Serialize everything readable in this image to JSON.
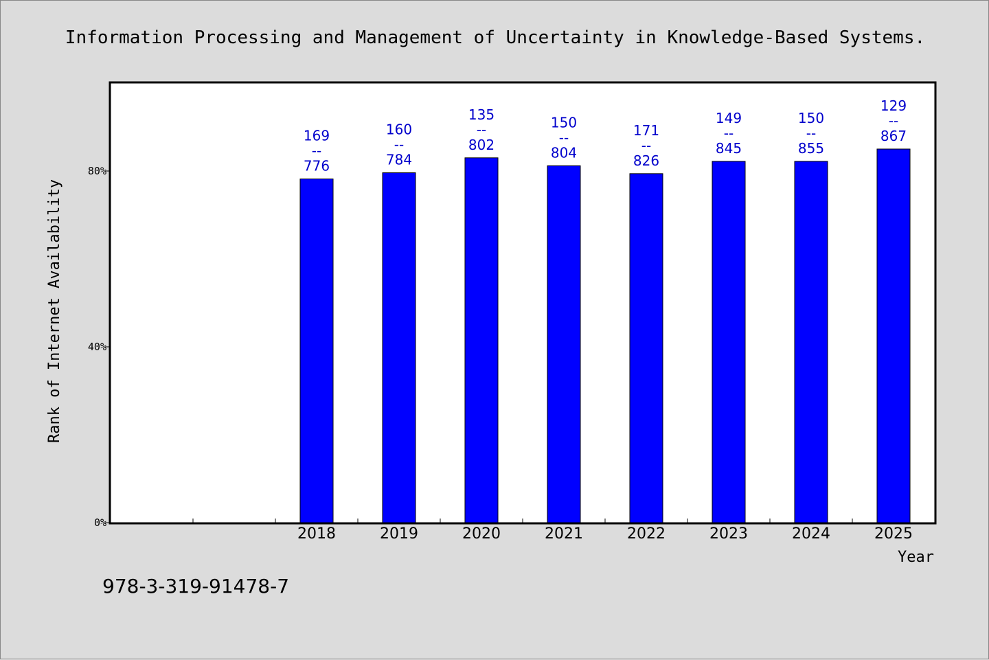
{
  "chart_data": {
    "type": "bar",
    "title": "Information Processing and Management of Uncertainty in Knowledge-Based Systems.",
    "xlabel": "Year",
    "ylabel": "Rank of Internet Availability",
    "categories": [
      "",
      "",
      "2018",
      "2019",
      "2020",
      "2021",
      "2022",
      "2023",
      "2024",
      "2025"
    ],
    "values": [
      null,
      null,
      78.2,
      79.6,
      83.0,
      81.2,
      79.4,
      82.2,
      82.2,
      85.0
    ],
    "data_labels": [
      null,
      null,
      [
        "169",
        "--",
        "776"
      ],
      [
        "160",
        "--",
        "784"
      ],
      [
        "135",
        "--",
        "802"
      ],
      [
        "150",
        "--",
        "804"
      ],
      [
        "171",
        "--",
        "826"
      ],
      [
        "149",
        "--",
        "845"
      ],
      [
        "150",
        "--",
        "855"
      ],
      [
        "129",
        "--",
        "867"
      ]
    ],
    "y_ticks": [
      0,
      40,
      80
    ],
    "y_tick_labels": [
      "0%",
      "40%",
      "80%"
    ],
    "ylim": [
      0,
      100
    ],
    "bar_color": "#0000ff",
    "label_color": "#0000cc",
    "grid": false,
    "legend": "none"
  },
  "footer": {
    "isbn": "978-3-319-91478-7"
  }
}
